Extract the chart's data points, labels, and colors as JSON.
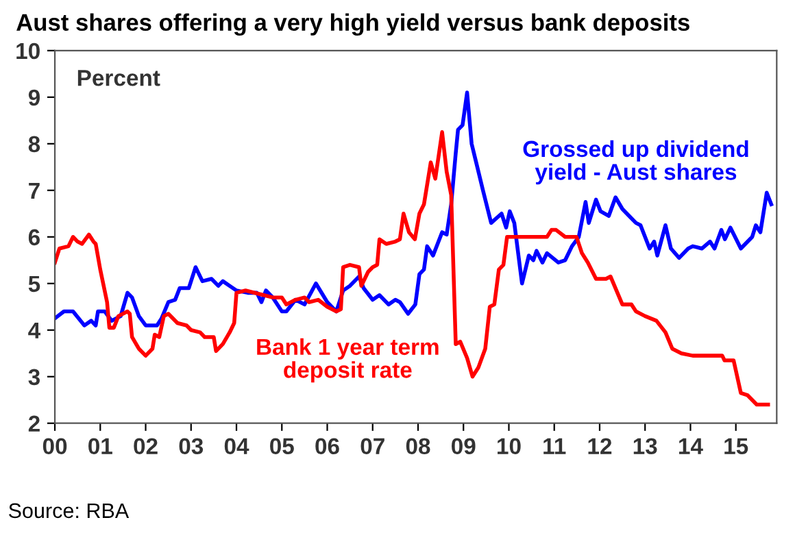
{
  "chart_data": {
    "type": "line",
    "title": "Aust shares offering a very high yield versus bank deposits",
    "annotations": [
      "Percent",
      "Source: RBA"
    ],
    "xlim": [
      0,
      15.9
    ],
    "ylim": [
      2,
      10
    ],
    "yticks": [
      2,
      3,
      4,
      5,
      6,
      7,
      8,
      9,
      10
    ],
    "xticks": [
      {
        "value": 0,
        "label": "00"
      },
      {
        "value": 1,
        "label": "01"
      },
      {
        "value": 2,
        "label": "02"
      },
      {
        "value": 3,
        "label": "03"
      },
      {
        "value": 4,
        "label": "04"
      },
      {
        "value": 5,
        "label": "05"
      },
      {
        "value": 6,
        "label": "06"
      },
      {
        "value": 7,
        "label": "07"
      },
      {
        "value": 8,
        "label": "08"
      },
      {
        "value": 9,
        "label": "09"
      },
      {
        "value": 10,
        "label": "10"
      },
      {
        "value": 11,
        "label": "11"
      },
      {
        "value": 12,
        "label": "12"
      },
      {
        "value": 13,
        "label": "13"
      },
      {
        "value": 14,
        "label": "14"
      },
      {
        "value": 15,
        "label": "15"
      }
    ],
    "grid": false,
    "legend": false,
    "marker": "none",
    "line_style": "solid",
    "series": [
      {
        "name": "Grossed up dividend yield - Aust shares",
        "color": "#0000ff",
        "x": [
          0,
          0.2,
          0.4,
          0.65,
          0.8,
          0.9,
          0.95,
          1.1,
          1.25,
          1.45,
          1.6,
          1.7,
          1.85,
          2.0,
          2.25,
          2.35,
          2.5,
          2.65,
          2.75,
          2.95,
          3.1,
          3.25,
          3.45,
          3.6,
          3.7,
          3.85,
          4.0,
          4.25,
          4.45,
          4.55,
          4.65,
          4.8,
          5.0,
          5.1,
          5.3,
          5.5,
          5.75,
          6.0,
          6.2,
          6.35,
          6.5,
          6.7,
          6.8,
          7.0,
          7.15,
          7.35,
          7.5,
          7.6,
          7.78,
          7.94,
          8.03,
          8.13,
          8.2,
          8.33,
          8.53,
          8.63,
          8.73,
          8.83,
          8.88,
          8.98,
          9.08,
          9.18,
          9.28,
          9.43,
          9.61,
          9.84,
          9.94,
          10.02,
          10.12,
          10.29,
          10.44,
          10.54,
          10.61,
          10.74,
          10.84,
          11.09,
          11.24,
          11.39,
          11.54,
          11.69,
          11.76,
          11.92,
          12.02,
          12.2,
          12.35,
          12.5,
          12.65,
          12.8,
          12.9,
          13.1,
          13.2,
          13.27,
          13.45,
          13.57,
          13.75,
          13.95,
          14.05,
          14.25,
          14.43,
          14.53,
          14.68,
          14.76,
          14.88,
          15.11,
          15.36,
          15.44,
          15.54,
          15.68,
          15.78
        ],
        "values": [
          4.25,
          4.4,
          4.4,
          4.1,
          4.2,
          4.1,
          4.4,
          4.4,
          4.2,
          4.3,
          4.8,
          4.7,
          4.3,
          4.1,
          4.1,
          4.25,
          4.6,
          4.65,
          4.9,
          4.9,
          5.35,
          5.05,
          5.1,
          4.95,
          5.05,
          4.95,
          4.85,
          4.8,
          4.8,
          4.6,
          4.85,
          4.7,
          4.4,
          4.4,
          4.65,
          4.55,
          5.0,
          4.6,
          4.4,
          4.85,
          4.95,
          5.15,
          4.9,
          4.65,
          4.75,
          4.55,
          4.65,
          4.6,
          4.35,
          4.55,
          5.2,
          5.3,
          5.8,
          5.6,
          6.1,
          6.05,
          6.7,
          7.8,
          8.3,
          8.4,
          9.1,
          8.0,
          7.6,
          7.0,
          6.3,
          6.5,
          6.2,
          6.55,
          6.3,
          5.0,
          5.6,
          5.5,
          5.7,
          5.45,
          5.65,
          5.45,
          5.5,
          5.8,
          6.0,
          6.75,
          6.3,
          6.8,
          6.55,
          6.45,
          6.85,
          6.6,
          6.45,
          6.3,
          6.25,
          5.75,
          5.9,
          5.6,
          6.25,
          5.75,
          5.55,
          5.75,
          5.8,
          5.75,
          5.9,
          5.75,
          6.15,
          5.95,
          6.2,
          5.75,
          6.0,
          6.25,
          6.1,
          6.95,
          6.7
        ]
      },
      {
        "name": "Bank 1 year term deposit rate",
        "color": "#ff0000",
        "x": [
          0,
          0.1,
          0.3,
          0.4,
          0.5,
          0.6,
          0.75,
          0.85,
          0.9,
          1.0,
          1.15,
          1.2,
          1.3,
          1.4,
          1.6,
          1.65,
          1.7,
          1.85,
          2.0,
          2.15,
          2.2,
          2.3,
          2.4,
          2.5,
          2.7,
          2.9,
          3.0,
          3.2,
          3.3,
          3.5,
          3.55,
          3.7,
          3.85,
          3.95,
          4.0,
          4.2,
          4.6,
          4.8,
          5.0,
          5.1,
          5.3,
          5.5,
          5.6,
          5.8,
          6.0,
          6.2,
          6.3,
          6.35,
          6.5,
          6.7,
          6.75,
          6.9,
          7.0,
          7.1,
          7.15,
          7.3,
          7.5,
          7.6,
          7.68,
          7.8,
          7.93,
          8.03,
          8.13,
          8.28,
          8.38,
          8.53,
          8.63,
          8.73,
          8.83,
          8.93,
          9.08,
          9.2,
          9.33,
          9.48,
          9.58,
          9.68,
          9.78,
          9.88,
          9.96,
          10.84,
          10.94,
          11.04,
          11.24,
          11.49,
          11.61,
          11.74,
          11.92,
          12.14,
          12.24,
          12.5,
          12.7,
          12.8,
          13.0,
          13.25,
          13.45,
          13.6,
          13.8,
          14.05,
          14.7,
          14.75,
          14.95,
          15.11,
          15.26,
          15.46,
          15.71
        ],
        "values": [
          5.45,
          5.75,
          5.8,
          6.0,
          5.9,
          5.85,
          6.05,
          5.9,
          5.85,
          5.3,
          4.6,
          4.05,
          4.05,
          4.3,
          4.4,
          4.35,
          3.85,
          3.6,
          3.45,
          3.6,
          3.9,
          3.85,
          4.3,
          4.35,
          4.15,
          4.1,
          4.0,
          3.95,
          3.85,
          3.85,
          3.55,
          3.7,
          3.95,
          4.15,
          4.8,
          4.85,
          4.75,
          4.7,
          4.7,
          4.55,
          4.65,
          4.7,
          4.6,
          4.65,
          4.5,
          4.4,
          4.45,
          5.35,
          5.4,
          5.35,
          4.95,
          5.25,
          5.35,
          5.4,
          5.95,
          5.85,
          5.9,
          5.95,
          6.5,
          6.1,
          5.95,
          6.5,
          6.7,
          7.6,
          7.25,
          8.25,
          7.4,
          6.9,
          3.7,
          3.75,
          3.4,
          3.0,
          3.2,
          3.6,
          4.5,
          4.55,
          5.3,
          5.4,
          6.0,
          6.0,
          6.15,
          6.15,
          6.0,
          6.0,
          5.65,
          5.45,
          5.1,
          5.1,
          5.15,
          4.55,
          4.55,
          4.4,
          4.3,
          4.2,
          3.95,
          3.6,
          3.5,
          3.45,
          3.45,
          3.35,
          3.35,
          2.65,
          2.6,
          2.4,
          2.4
        ]
      }
    ]
  }
}
